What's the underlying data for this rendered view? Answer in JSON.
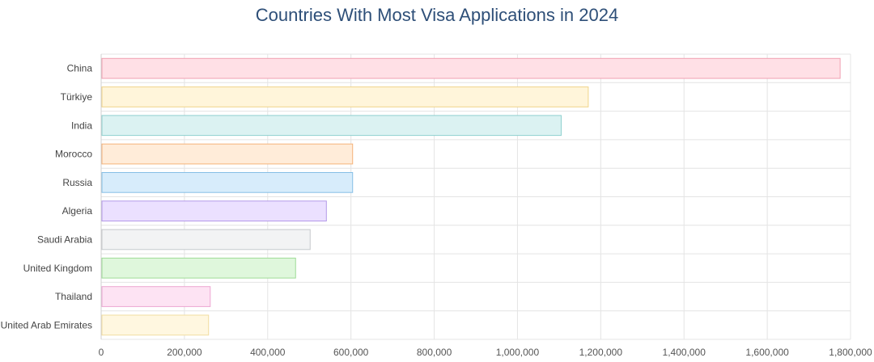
{
  "chart_data": {
    "type": "bar",
    "orientation": "horizontal",
    "title": "Countries With Most Visa Applications in 2024",
    "xlabel": "",
    "ylabel": "",
    "xlim": [
      0,
      1800000
    ],
    "x_ticks": [
      "0",
      "200,000",
      "400,000",
      "600,000",
      "800,000",
      "1,000,000",
      "1,200,000",
      "1,400,000",
      "1,600,000",
      "1,800,000"
    ],
    "grid": true,
    "categories": [
      "China",
      "Türkiye",
      "India",
      "Morocco",
      "Russia",
      "Algeria",
      "Saudi Arabia",
      "United Kingdom",
      "Thailand",
      "United Arab Emirates"
    ],
    "values": [
      1775000,
      1170000,
      1105000,
      604000,
      604000,
      541000,
      502000,
      467000,
      262000,
      258000
    ],
    "colors": [
      {
        "fill": "#ffe0e6",
        "stroke": "#f0a0b2"
      },
      {
        "fill": "#fff5da",
        "stroke": "#f0d48a"
      },
      {
        "fill": "#dbf2f2",
        "stroke": "#8fd0cf"
      },
      {
        "fill": "#ffecd9",
        "stroke": "#f5b27a"
      },
      {
        "fill": "#d7ecfb",
        "stroke": "#86bfe6"
      },
      {
        "fill": "#ebe0ff",
        "stroke": "#b49ae8"
      },
      {
        "fill": "#f2f3f4",
        "stroke": "#c5c8cc"
      },
      {
        "fill": "#dff7dc",
        "stroke": "#9edb96"
      },
      {
        "fill": "#fde3f3",
        "stroke": "#eca6d2"
      },
      {
        "fill": "#fff7e0",
        "stroke": "#f2dca0"
      }
    ]
  }
}
